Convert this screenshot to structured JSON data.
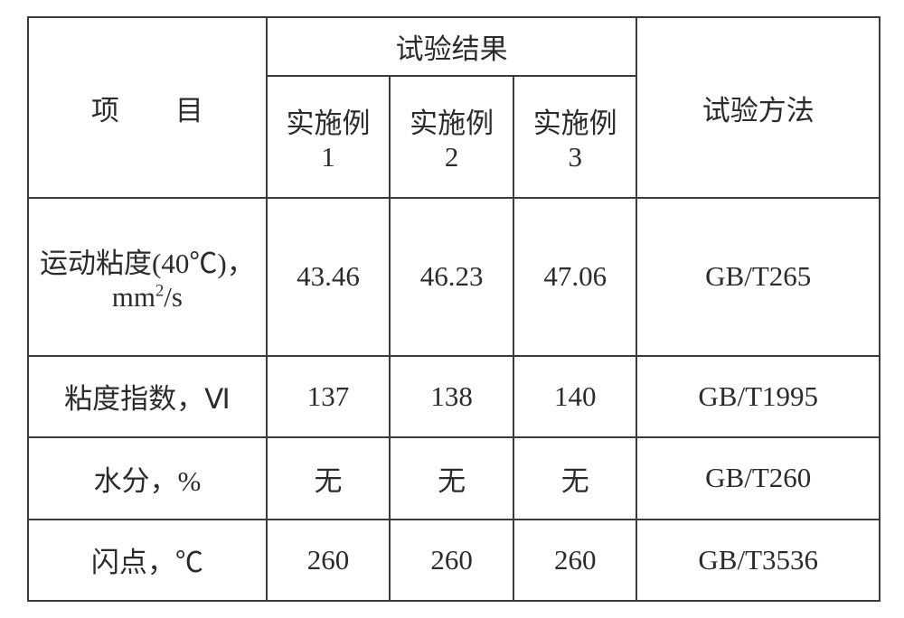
{
  "table": {
    "type": "table",
    "border_color": "#3a3a3a",
    "background_color": "#ffffff",
    "text_color": "#2b2b2b",
    "font_size_pt": 23,
    "columns_label_item": "项　　目",
    "columns_label_results_group": "试验结果",
    "columns_label_method": "试验方法",
    "result_sub_headers": [
      "实施例",
      "实施例",
      "实施例"
    ],
    "result_sub_nums": [
      "1",
      "2",
      "3"
    ],
    "col_widths_pct": [
      28,
      14.5,
      14.5,
      14.5,
      28.5
    ],
    "rows": [
      {
        "item_line1": "运动粘度(40℃)，",
        "item_line2_pre": "mm",
        "item_line2_sup": "2",
        "item_line2_post": "/s",
        "vals": [
          "43.46",
          "46.23",
          "47.06"
        ],
        "method": "GB/T265",
        "height_pct": 27
      },
      {
        "item_line1": "粘度指数，Ⅵ",
        "vals": [
          "137",
          "138",
          "140"
        ],
        "method": "GB/T1995",
        "height_pct": 14
      },
      {
        "item_line1": "水分，%",
        "vals": [
          "无",
          "无",
          "无"
        ],
        "method": "GB/T260",
        "height_pct": 14
      },
      {
        "item_line1": "闪点，℃",
        "vals": [
          "260",
          "260",
          "260"
        ],
        "method": "GB/T3536",
        "height_pct": 14
      }
    ]
  }
}
